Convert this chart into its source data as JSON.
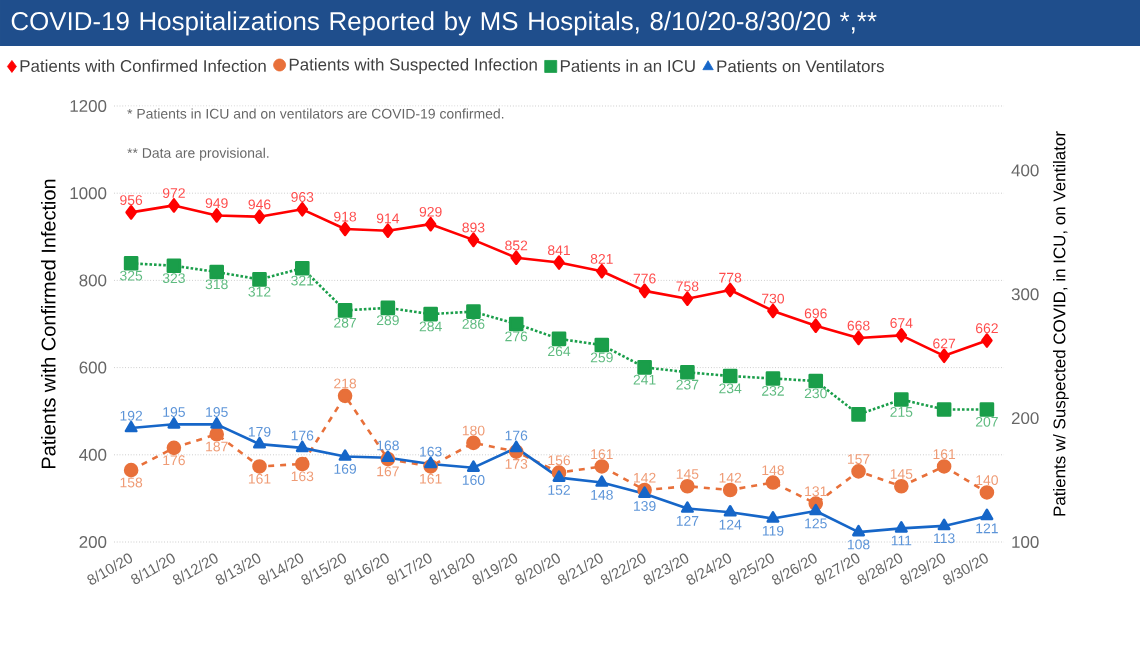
{
  "chart_data": {
    "type": "line",
    "title": "COVID-19 Hospitalizations Reported by MS Hospitals, 8/10/20-8/30/20 *,**",
    "ylabel": "Patients with Confirmed Infection",
    "y2label": "Patients w/ Suspected COVID, in ICU, on Ventilator",
    "annotations": [
      "* Patients in ICU and on ventilators are COVID-19 confirmed.",
      "** Data are provisional."
    ],
    "categories": [
      "8/10/20",
      "8/11/20",
      "8/12/20",
      "8/13/20",
      "8/14/20",
      "8/15/20",
      "8/16/20",
      "8/17/20",
      "8/18/20",
      "8/19/20",
      "8/20/20",
      "8/21/20",
      "8/22/20",
      "8/23/20",
      "8/24/20",
      "8/25/20",
      "8/26/20",
      "8/27/20",
      "8/28/20",
      "8/29/20",
      "8/30/20"
    ],
    "ylim": [
      200,
      1200
    ],
    "yticks": [
      200,
      400,
      600,
      800,
      1000,
      1200
    ],
    "y2lim": [
      100,
      452
    ],
    "y2ticks": [
      100,
      200,
      300,
      400
    ],
    "grid": "y",
    "legend": "top left",
    "series": [
      {
        "name": "Patients with Confirmed Infection",
        "color": "#ff0000",
        "marker": "diamond",
        "line_style": "solid",
        "values": [
          956,
          972,
          949,
          946,
          963,
          918,
          914,
          929,
          893,
          852,
          841,
          821,
          776,
          758,
          778,
          730,
          696,
          668,
          674,
          627,
          662
        ],
        "value_labels": [
          "956",
          "972",
          "949",
          "946",
          "963",
          "918",
          "914",
          "929",
          "893",
          "852",
          "841",
          "821",
          "776",
          "758",
          "778",
          "730",
          "696",
          "668",
          "674",
          "627",
          "662"
        ]
      },
      {
        "name": "Patients with Suspected Infection",
        "color": "#e8703a",
        "marker": "circle",
        "line_style": "dashed",
        "axis": "y2",
        "values": [
          158,
          176,
          187,
          161,
          163,
          218,
          167,
          161,
          180,
          173,
          156,
          161,
          142,
          145,
          142,
          148,
          131,
          157,
          145,
          161,
          140
        ],
        "value_labels": [
          "158",
          "176",
          "187",
          "161",
          "163",
          "218",
          "167",
          "161",
          "180",
          "173",
          "156",
          "161",
          "142",
          "145",
          "142",
          "148",
          "131",
          "157",
          "145",
          "161",
          "140"
        ]
      },
      {
        "name": "Patients in an ICU",
        "color": "#1a9e4a",
        "marker": "square",
        "line_style": "dotted",
        "axis": "y2",
        "values": [
          325,
          323,
          318,
          312,
          321,
          287,
          289,
          284,
          286,
          276,
          264,
          259,
          241,
          237,
          234,
          232,
          230,
          203,
          215,
          207,
          207
        ],
        "value_labels": [
          "325",
          "323",
          "318",
          "312",
          "321",
          "287",
          "289",
          "284",
          "286",
          "276",
          "264",
          "259",
          "241",
          "237",
          "234",
          "232",
          "230",
          null,
          "215",
          null,
          "207"
        ]
      },
      {
        "name": "Patients on Ventilators",
        "color": "#1666c8",
        "marker": "triangle",
        "line_style": "solid",
        "axis": "y2",
        "values": [
          192,
          195,
          195,
          179,
          176,
          169,
          168,
          163,
          160,
          176,
          152,
          148,
          139,
          127,
          124,
          119,
          125,
          108,
          111,
          113,
          121
        ],
        "value_labels": [
          "192",
          "195",
          "195",
          "179",
          "176",
          "169",
          "168",
          "163",
          "160",
          "176",
          "152",
          "148",
          "139",
          "127",
          "124",
          "119",
          "125",
          "108",
          "111",
          "113",
          "121"
        ]
      }
    ]
  }
}
